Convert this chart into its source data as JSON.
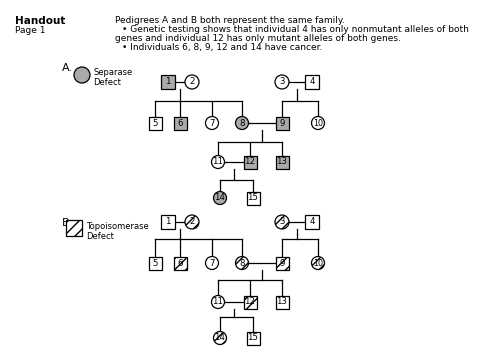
{
  "bg_color": "#ffffff",
  "shape_color_affected_A": "#aaaaaa",
  "line_color": "#000000",
  "text_header_bold": "Handout",
  "text_header_page": "Page 1",
  "text_line1": "Pedigrees A and B both represent the same family.",
  "text_bullet1a": "• Genetic testing shows that individual 4 has only nonmutant alleles of both",
  "text_bullet1b": "genes and individual 12 has only mutant alleles of both genes.",
  "text_bullet2": "• Individuals 6, 8, 9, 12 and 14 have cancer.",
  "legend_A": "Separase\nDefect",
  "legend_B": "Topoisomerase\nDefect"
}
